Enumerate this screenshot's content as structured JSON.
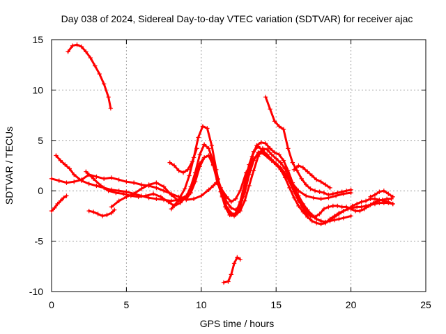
{
  "chart_data": {
    "type": "scatter",
    "title": "Day 038 of 2024, Sidereal Day-to-day VTEC variation (SDTVAR) for receiver ajac",
    "xlabel": "GPS time / hours",
    "ylabel": "SDTVAR / TECUs",
    "xlim": [
      0,
      25
    ],
    "ylim": [
      -10,
      15
    ],
    "xticks": [
      0,
      5,
      10,
      15,
      20,
      25
    ],
    "yticks": [
      -10,
      -5,
      0,
      5,
      10,
      15
    ],
    "xtick_labels": [
      "0",
      "5",
      "10",
      "15",
      "20",
      "25"
    ],
    "ytick_labels": [
      "-10",
      "-5",
      "0",
      "5",
      "10",
      "15"
    ],
    "grid": true,
    "marker": "plus",
    "color": "#ff0000",
    "series": [
      {
        "name": "arc-1",
        "x": [
          1.1,
          1.4,
          1.7,
          2.0,
          2.3,
          2.6,
          2.9,
          3.2,
          3.5,
          3.8,
          3.95
        ],
        "y": [
          13.8,
          14.4,
          14.5,
          14.3,
          13.8,
          13.2,
          12.4,
          11.6,
          10.6,
          9.3,
          8.2
        ]
      },
      {
        "name": "arc-2",
        "x": [
          11.5,
          11.8,
          12.0,
          12.2,
          12.4,
          12.6
        ],
        "y": [
          -9.1,
          -9.0,
          -8.3,
          -7.2,
          -6.6,
          -6.8
        ]
      },
      {
        "name": "arc-3",
        "x": [
          0.0,
          0.2,
          0.4,
          0.6,
          0.8,
          1.0
        ],
        "y": [
          -2.0,
          -1.7,
          -1.3,
          -1.0,
          -0.7,
          -0.5
        ]
      },
      {
        "name": "arc-4",
        "x": [
          2.5,
          2.8,
          3.1,
          3.4,
          3.7,
          4.0,
          4.2
        ],
        "y": [
          -2.0,
          -2.1,
          -2.3,
          -2.5,
          -2.4,
          -2.2,
          -1.9
        ]
      },
      {
        "name": "arc-5",
        "x": [
          0.0,
          0.5,
          1.0,
          1.5,
          2.0,
          2.5,
          3.0,
          3.5,
          4.0,
          4.5,
          5.0,
          5.5,
          6.0,
          6.5,
          7.0,
          7.5,
          8.0,
          8.5,
          9.0,
          9.5,
          10.0,
          10.5,
          10.8,
          11.0,
          11.3,
          11.7,
          12.0,
          12.3,
          12.6,
          13.0,
          13.5,
          14.0,
          14.5,
          15.0,
          15.5,
          16.0,
          16.5,
          17.0,
          17.5,
          18.0,
          18.5,
          19.0,
          19.5,
          20.0
        ],
        "y": [
          1.2,
          1.0,
          0.8,
          0.9,
          1.1,
          1.6,
          1.4,
          1.2,
          1.3,
          1.1,
          0.9,
          0.8,
          0.6,
          0.5,
          0.3,
          0.0,
          -0.3,
          -0.6,
          -0.9,
          -0.8,
          -0.5,
          0.1,
          0.5,
          0.8,
          0.3,
          -0.6,
          -1.1,
          -0.8,
          0.0,
          1.8,
          3.2,
          3.8,
          3.3,
          2.7,
          1.9,
          0.9,
          0.0,
          -0.5,
          -0.7,
          -0.8,
          -0.7,
          -0.5,
          -0.3,
          -0.2
        ]
      },
      {
        "name": "arc-6",
        "x": [
          0.3,
          0.6,
          0.9,
          1.2,
          1.5,
          2.0,
          2.5,
          3.0,
          3.5,
          4.0,
          4.5,
          5.0,
          5.5,
          6.0,
          6.5,
          7.0,
          7.5,
          8.0,
          8.5,
          9.0,
          9.3,
          9.6,
          9.9,
          10.2,
          10.5,
          10.8,
          11.1,
          11.4,
          11.7,
          12.0,
          12.3,
          12.6,
          12.9,
          13.2,
          13.5,
          13.8,
          14.1,
          14.4,
          14.7,
          15.0,
          15.3,
          15.6,
          15.9,
          16.2,
          16.5,
          16.8,
          17.1,
          17.4,
          17.7,
          18.0,
          18.3,
          18.6,
          18.9,
          19.2,
          19.5,
          20.0
        ],
        "y": [
          3.5,
          3.0,
          2.6,
          2.2,
          1.6,
          1.0,
          0.7,
          0.5,
          0.3,
          0.1,
          0.0,
          -0.1,
          -0.3,
          -0.5,
          -0.7,
          -0.8,
          -0.9,
          -1.0,
          -0.9,
          -0.5,
          0.2,
          1.4,
          2.7,
          3.3,
          3.5,
          2.5,
          0.8,
          -0.6,
          -1.6,
          -2.2,
          -2.4,
          -2.0,
          -1.0,
          0.5,
          2.0,
          3.4,
          4.2,
          4.1,
          3.6,
          3.2,
          2.8,
          2.2,
          1.3,
          0.4,
          -0.5,
          -1.3,
          -1.9,
          -2.4,
          -2.8,
          -3.0,
          -3.1,
          -3.0,
          -2.9,
          -2.8,
          -2.7,
          -2.5
        ]
      },
      {
        "name": "arc-7",
        "x": [
          2.3,
          2.8,
          3.3,
          3.8,
          4.3,
          4.8,
          5.3,
          5.8,
          6.3,
          6.8,
          7.3,
          7.8,
          8.2,
          8.6,
          9.0,
          9.3,
          9.6,
          9.9,
          10.2,
          10.5,
          10.8,
          11.1,
          11.4,
          11.7,
          12.0,
          12.3,
          12.6,
          12.9,
          13.2,
          13.5,
          13.8,
          14.1,
          14.4,
          14.7,
          15.0,
          15.3,
          15.6,
          15.9,
          16.2,
          16.5,
          16.8,
          17.1,
          17.4,
          17.7,
          18.0,
          18.3,
          18.6,
          18.9,
          19.2,
          19.5,
          19.8,
          20.1,
          20.4,
          20.7,
          21.0,
          21.3,
          21.6,
          21.9,
          22.2,
          22.5,
          22.8
        ],
        "y": [
          1.9,
          1.2,
          0.5,
          0.0,
          -0.2,
          -0.3,
          -0.5,
          -0.6,
          -0.5,
          -0.3,
          -0.6,
          -1.1,
          -1.5,
          -1.2,
          -0.6,
          0.4,
          1.8,
          3.6,
          4.6,
          4.2,
          2.9,
          1.1,
          -0.5,
          -1.8,
          -2.4,
          -2.2,
          -1.1,
          0.7,
          2.6,
          3.9,
          4.4,
          4.0,
          3.4,
          3.0,
          2.6,
          2.1,
          1.3,
          0.3,
          -0.7,
          -1.5,
          -2.1,
          -2.6,
          -3.0,
          -3.2,
          -3.3,
          -3.2,
          -2.8,
          -2.5,
          -2.2,
          -2.0,
          -1.8,
          -1.7,
          -1.6,
          -1.6,
          -1.5,
          -1.4,
          -1.3,
          -1.2,
          -1.2,
          -1.2,
          -1.3
        ]
      },
      {
        "name": "arc-8",
        "x": [
          4.0,
          4.5,
          5.0,
          5.5,
          6.0,
          6.5,
          7.0,
          7.5,
          8.0,
          8.5,
          9.0,
          9.3,
          9.6,
          9.9,
          10.2,
          10.5,
          10.8,
          11.1,
          11.4,
          11.7,
          12.0,
          12.3,
          12.6,
          12.9,
          13.2,
          13.5,
          13.8,
          14.1,
          14.4,
          14.7,
          15.0,
          15.3,
          15.6,
          15.9,
          16.2,
          16.5,
          16.8,
          17.1,
          17.4,
          17.7,
          18.0,
          18.3,
          18.6,
          18.9,
          19.2,
          19.5,
          19.8,
          20.1,
          20.4,
          20.7,
          21.0,
          21.3,
          21.6,
          21.9,
          22.2,
          22.5,
          22.8
        ],
        "y": [
          -1.6,
          -1.0,
          -0.6,
          -0.3,
          0.2,
          0.6,
          0.8,
          0.4,
          -0.4,
          -1.0,
          -0.8,
          -0.2,
          0.9,
          2.4,
          3.3,
          3.5,
          2.6,
          1.2,
          -0.1,
          -1.1,
          -1.7,
          -1.9,
          -1.4,
          -0.2,
          1.6,
          3.0,
          3.8,
          4.0,
          3.6,
          3.1,
          2.7,
          2.3,
          1.7,
          0.9,
          -0.1,
          -1.0,
          -1.6,
          -2.1,
          -2.5,
          -2.8,
          -3.0,
          -3.1,
          -2.9,
          -2.6,
          -2.3,
          -2.0,
          -1.8,
          -1.5,
          -1.3,
          -1.1,
          -1.0,
          -0.8,
          -0.8,
          -0.9,
          -1.0,
          -1.1,
          -1.3
        ]
      },
      {
        "name": "arc-9",
        "x": [
          8.0,
          8.3,
          8.6,
          8.9,
          9.2,
          9.5,
          9.8,
          10.1,
          10.4,
          10.7,
          11.0,
          11.3,
          11.6,
          11.9,
          12.2,
          12.5,
          12.8,
          13.1,
          13.4,
          13.7,
          14.0,
          14.3,
          14.6,
          14.9,
          15.2,
          15.5,
          15.8,
          16.1,
          16.4,
          16.7,
          17.0,
          17.3,
          17.6,
          17.9,
          18.2,
          18.5,
          18.8,
          19.1,
          19.4,
          19.7,
          20.0,
          20.3,
          20.6,
          20.9,
          21.2,
          21.5,
          21.8,
          22.1,
          22.4,
          22.7
        ],
        "y": [
          -1.8,
          -1.3,
          -0.6,
          0.2,
          1.5,
          3.3,
          5.3,
          6.4,
          6.2,
          4.5,
          2.1,
          -0.1,
          -1.6,
          -2.4,
          -2.5,
          -2.0,
          -0.6,
          1.5,
          3.4,
          4.5,
          4.8,
          4.7,
          4.2,
          3.8,
          3.6,
          3.0,
          2.0,
          0.8,
          -0.5,
          -1.5,
          -2.2,
          -2.5,
          -2.6,
          -2.3,
          -1.8,
          -1.6,
          -1.5,
          -1.5,
          -1.6,
          -1.6,
          -1.8,
          -2.0,
          -2.0,
          -1.8,
          -1.5,
          -1.2,
          -1.0,
          -0.9,
          -0.8,
          -0.8
        ]
      },
      {
        "name": "arc-10",
        "x": [
          7.9,
          8.2,
          8.5,
          8.8,
          9.1,
          9.4,
          9.7
        ],
        "y": [
          2.8,
          2.5,
          2.0,
          1.8,
          2.1,
          2.9,
          4.2
        ]
      },
      {
        "name": "arc-11",
        "x": [
          14.3,
          14.6,
          14.9,
          15.2,
          15.5,
          15.8,
          16.1,
          16.4,
          16.7,
          17.0,
          17.3,
          17.6,
          17.9,
          18.2,
          18.5,
          18.8,
          19.1,
          19.4,
          19.7,
          20.0
        ],
        "y": [
          9.3,
          8.1,
          6.9,
          6.4,
          6.1,
          4.2,
          2.8,
          2.0,
          1.2,
          0.6,
          0.2,
          0.0,
          -0.1,
          -0.2,
          -0.4,
          -0.3,
          -0.2,
          -0.1,
          0.0,
          0.1
        ]
      },
      {
        "name": "arc-12",
        "x": [
          16.2,
          16.5,
          16.8,
          17.1,
          17.4,
          17.7,
          18.0,
          18.3,
          18.6
        ],
        "y": [
          2.1,
          2.5,
          2.3,
          1.9,
          1.5,
          1.1,
          0.9,
          0.6,
          0.3
        ]
      },
      {
        "name": "arc-13",
        "x": [
          21.3,
          21.6,
          21.9,
          22.2,
          22.5,
          22.8
        ],
        "y": [
          -0.6,
          -0.4,
          -0.1,
          0.0,
          -0.3,
          -0.6
        ]
      }
    ]
  }
}
